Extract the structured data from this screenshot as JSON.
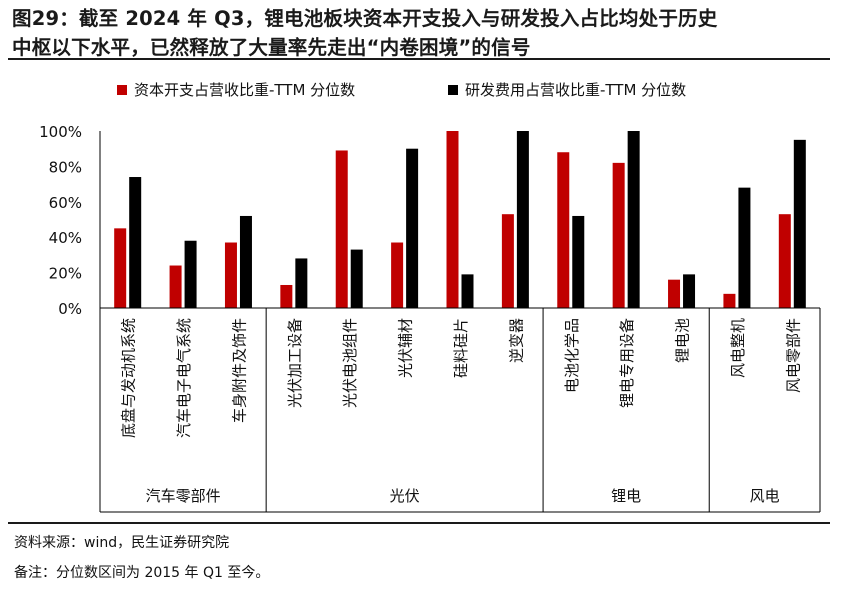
{
  "title": {
    "line1": "图29：截至 2024 年 Q3，锂电池板块资本开支投入与研发投入占比均处于历史",
    "line2": "中枢以下水平，已然释放了大量率先走出“内卷困境”的信号"
  },
  "footer": {
    "source": "资料来源：wind，民生证券研究院",
    "note": "备注：分位数区间为 2015 年 Q1 至今。"
  },
  "colors": {
    "series1": "#c00000",
    "series2": "#000000",
    "axis": "#000000"
  },
  "chart_data": {
    "type": "bar",
    "title": "",
    "xlabel": "",
    "ylabel": "",
    "ylim": [
      0,
      100
    ],
    "yticks": [
      "0%",
      "20%",
      "40%",
      "60%",
      "80%",
      "100%"
    ],
    "legend_position": "top",
    "categories": [
      "底盘与发动机系统",
      "汽车电子电气系统",
      "车身附件及饰件",
      "光伏加工设备",
      "光伏电池组件",
      "光伏辅材",
      "硅料硅片",
      "逆变器",
      "电池化学品",
      "锂电专用设备",
      "锂电池",
      "风电整机",
      "风电零部件"
    ],
    "groups": [
      {
        "name": "汽车零部件",
        "count": 3
      },
      {
        "name": "光伏",
        "count": 5
      },
      {
        "name": "锂电",
        "count": 3
      },
      {
        "name": "风电",
        "count": 2
      }
    ],
    "series": [
      {
        "name": "资本开支占营收比重-TTM 分位数",
        "values": [
          45,
          24,
          37,
          13,
          89,
          37,
          100,
          53,
          88,
          82,
          16,
          8,
          53
        ]
      },
      {
        "name": "研发费用占营收比重-TTM 分位数",
        "values": [
          74,
          38,
          52,
          28,
          33,
          90,
          19,
          100,
          52,
          100,
          19,
          68,
          95
        ]
      }
    ]
  }
}
